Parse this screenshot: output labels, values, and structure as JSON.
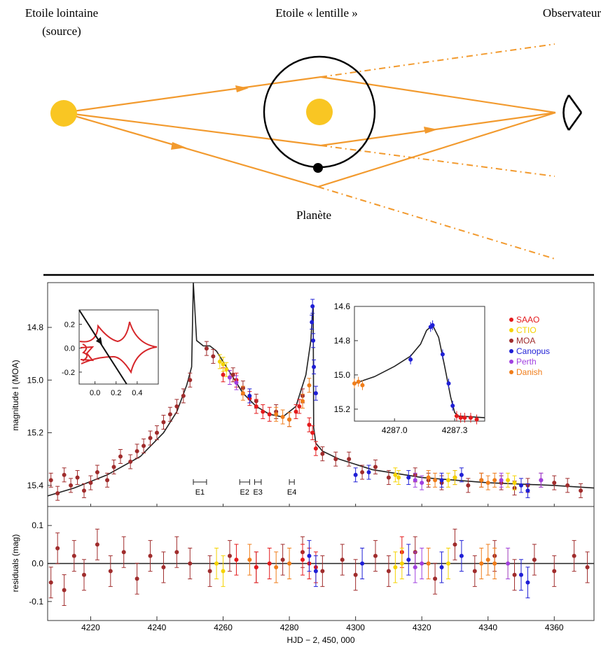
{
  "diagram": {
    "source_label_line1": "Etoile lointaine",
    "source_label_line2": "(source)",
    "lens_label": "Etoile « lentille »",
    "observer_label": "Observateur",
    "planet_label": "Planète",
    "colors": {
      "ray": "#f29a2e",
      "star": "#f9c623",
      "orbit": "#000000"
    }
  },
  "chart_data": [
    {
      "type": "scatter",
      "panel": "main",
      "ylabel": "magnitude I (MOA)",
      "ylim": [
        15.48,
        14.63
      ],
      "xlim": [
        4207,
        4372
      ],
      "y_inverted": true,
      "yticks": [
        "14.8",
        "15.0",
        "15.2",
        "15.4"
      ],
      "yticks_values": [
        14.8,
        15.0,
        15.2,
        15.4
      ],
      "grid": false,
      "legend": {
        "placement": "top-right",
        "entries": [
          {
            "name": "SAAO",
            "color": "#e41a1c"
          },
          {
            "name": "CTIO",
            "color": "#f5d300"
          },
          {
            "name": "MOA",
            "color": "#a02c2c"
          },
          {
            "name": "Canopus",
            "color": "#1f1fd6"
          },
          {
            "name": "Perth",
            "color": "#a040e0"
          },
          {
            "name": "Danish",
            "color": "#f07d1a"
          }
        ]
      },
      "model_curve": {
        "x": [
          4207,
          4215,
          4225,
          4235,
          4242,
          4246,
          4249,
          4250.5,
          4251,
          4252,
          4254,
          4256,
          4258,
          4262,
          4266,
          4270,
          4274,
          4278,
          4282,
          4285,
          4286.5,
          4287,
          4287.2,
          4287.35,
          4288,
          4290,
          4295,
          4305,
          4320,
          4340,
          4360,
          4372
        ],
        "y": [
          15.44,
          15.41,
          15.36,
          15.29,
          15.2,
          15.12,
          15.02,
          14.95,
          14.63,
          14.85,
          14.87,
          14.87,
          14.89,
          14.97,
          15.05,
          15.1,
          15.13,
          15.14,
          15.1,
          14.98,
          14.85,
          14.74,
          14.72,
          15.18,
          15.24,
          15.27,
          15.3,
          15.34,
          15.37,
          15.39,
          15.4,
          15.41
        ]
      },
      "series": [
        {
          "name": "MOA",
          "color": "#a02c2c",
          "x": [
            4208,
            4210,
            4212,
            4214,
            4216,
            4218,
            4220,
            4222,
            4225,
            4227,
            4229,
            4232,
            4234,
            4236,
            4238,
            4240,
            4242,
            4244,
            4246,
            4248,
            4250,
            4255,
            4257,
            4263,
            4266,
            4270,
            4276,
            4280,
            4284,
            4290,
            4294,
            4298,
            4302,
            4306,
            4310,
            4318,
            4322,
            4326,
            4330,
            4334,
            4338,
            4344,
            4348,
            4352,
            4356,
            4360,
            4364,
            4368
          ],
          "y": [
            15.38,
            15.43,
            15.36,
            15.4,
            15.37,
            15.42,
            15.39,
            15.35,
            15.38,
            15.33,
            15.29,
            15.31,
            15.27,
            15.25,
            15.22,
            15.2,
            15.16,
            15.13,
            15.1,
            15.06,
            15.0,
            14.88,
            14.91,
            14.98,
            15.03,
            15.08,
            15.12,
            15.15,
            15.06,
            15.28,
            15.3,
            15.3,
            15.35,
            15.33,
            15.37,
            15.36,
            15.38,
            15.39,
            15.37,
            15.4,
            15.38,
            15.39,
            15.41,
            15.4,
            15.38,
            15.39,
            15.4,
            15.42
          ]
        },
        {
          "name": "SAAO",
          "color": "#e41a1c",
          "x": [
            4260,
            4262,
            4264,
            4268,
            4270,
            4272,
            4274,
            4282,
            4283,
            4286,
            4287,
            4288
          ],
          "y": [
            14.98,
            14.99,
            15.0,
            15.07,
            15.1,
            15.12,
            15.13,
            15.12,
            15.1,
            15.17,
            15.2,
            15.26
          ]
        },
        {
          "name": "CTIO",
          "color": "#f5d300",
          "x": [
            4259,
            4260,
            4261,
            4312,
            4313,
            4328,
            4330,
            4346,
            4348
          ],
          "y": [
            14.93,
            14.94,
            14.96,
            15.36,
            15.37,
            15.38,
            15.37,
            15.38,
            15.39
          ]
        },
        {
          "name": "Canopus",
          "color": "#1f1fd6",
          "x": [
            4268,
            4286.8,
            4287,
            4287.2,
            4287.4,
            4288,
            4300,
            4304,
            4316,
            4326,
            4332,
            4350,
            4352
          ],
          "y": [
            15.06,
            14.78,
            14.72,
            14.85,
            14.95,
            15.05,
            15.36,
            15.35,
            15.37,
            15.38,
            15.36,
            15.4,
            15.42
          ]
        },
        {
          "name": "Perth",
          "color": "#a040e0",
          "x": [
            4262,
            4264,
            4318,
            4320,
            4344,
            4356
          ],
          "y": [
            14.99,
            15.01,
            15.38,
            15.39,
            15.38,
            15.38
          ]
        },
        {
          "name": "Danish",
          "color": "#f07d1a",
          "x": [
            4266,
            4276,
            4278,
            4280,
            4284,
            4286,
            4322,
            4324,
            4338,
            4340,
            4342
          ],
          "y": [
            15.05,
            15.13,
            15.14,
            15.15,
            15.08,
            15.02,
            15.37,
            15.38,
            15.38,
            15.39,
            15.38
          ]
        }
      ],
      "annotations": [
        {
          "label": "E1",
          "x_start": 4251,
          "x_end": 4255
        },
        {
          "label": "E2",
          "x_start": 4265,
          "x_end": 4268
        },
        {
          "label": "E3",
          "x_start": 4269.5,
          "x_end": 4271.5
        },
        {
          "label": "E4",
          "x_start": 4280,
          "x_end": 4281.5
        }
      ]
    },
    {
      "type": "line",
      "panel": "inset-caustic",
      "xlim": [
        -0.15,
        0.6
      ],
      "ylim": [
        -0.3,
        0.32
      ],
      "xticks": [
        "0.0",
        "0.2",
        "0.4"
      ],
      "xticks_values": [
        0.0,
        0.2,
        0.4
      ],
      "yticks": [
        "0.2",
        "0.0",
        "-0.2"
      ],
      "yticks_values": [
        0.2,
        0.0,
        -0.2
      ],
      "trajectory": {
        "x": [
          -0.15,
          0.3
        ],
        "y": [
          0.32,
          -0.3
        ]
      }
    },
    {
      "type": "scatter",
      "panel": "inset-peak",
      "xlim": [
        4286.8,
        4287.45
      ],
      "ylim": [
        15.27,
        14.6
      ],
      "xticks": [
        "4287.0",
        "4287.3"
      ],
      "xticks_values": [
        4287.0,
        4287.3
      ],
      "yticks": [
        "14.6",
        "14.8",
        "15.0",
        "15.2"
      ],
      "yticks_values": [
        14.6,
        14.8,
        15.0,
        15.2
      ],
      "model_curve": {
        "x": [
          4286.8,
          4286.9,
          4287.0,
          4287.08,
          4287.13,
          4287.16,
          4287.19,
          4287.22,
          4287.25,
          4287.28,
          4287.3,
          4287.32,
          4287.45
        ],
        "y": [
          15.05,
          15.01,
          14.95,
          14.89,
          14.82,
          14.74,
          14.71,
          14.78,
          14.95,
          15.13,
          15.22,
          15.24,
          15.25
        ]
      },
      "series": [
        {
          "name": "Danish",
          "color": "#f07d1a",
          "x": [
            4286.8,
            4286.82,
            4286.84
          ],
          "y": [
            15.05,
            15.04,
            15.06
          ]
        },
        {
          "name": "Canopus",
          "color": "#1f1fd6",
          "x": [
            4287.08,
            4287.18,
            4287.19,
            4287.24,
            4287.27,
            4287.29
          ],
          "y": [
            14.91,
            14.72,
            14.71,
            14.88,
            15.05,
            15.18
          ]
        },
        {
          "name": "SAAO",
          "color": "#e41a1c",
          "x": [
            4287.31,
            4287.33,
            4287.35,
            4287.38,
            4287.41
          ],
          "y": [
            15.24,
            15.25,
            15.25,
            15.25,
            15.26
          ]
        }
      ]
    },
    {
      "type": "scatter",
      "panel": "residuals",
      "ylabel": "residuals (mag)",
      "xlabel": "HJD − 2, 450, 000",
      "xlim": [
        4207,
        4372
      ],
      "ylim": [
        -0.15,
        0.15
      ],
      "xticks": [
        "4220",
        "4240",
        "4260",
        "4280",
        "4300",
        "4320",
        "4340",
        "4360"
      ],
      "xticks_values": [
        4220,
        4240,
        4260,
        4280,
        4300,
        4320,
        4340,
        4360
      ],
      "yticks": [
        "0.1",
        "0.0",
        "-0.1"
      ],
      "yticks_values": [
        0.1,
        0.0,
        -0.1
      ],
      "series": [
        {
          "name": "MOA",
          "color": "#a02c2c",
          "x": [
            4208,
            4210,
            4212,
            4215,
            4218,
            4222,
            4226,
            4230,
            4234,
            4238,
            4242,
            4246,
            4250,
            4256,
            4262,
            4270,
            4278,
            4284,
            4290,
            4296,
            4300,
            4306,
            4310,
            4318,
            4324,
            4330,
            4336,
            4342,
            4348,
            4354,
            4360,
            4366,
            4370
          ],
          "y": [
            -0.05,
            0.04,
            -0.07,
            0.02,
            -0.03,
            0.05,
            -0.02,
            0.03,
            -0.04,
            0.02,
            -0.01,
            0.03,
            0.0,
            -0.02,
            0.02,
            -0.01,
            0.01,
            0.03,
            -0.02,
            0.01,
            -0.03,
            0.02,
            -0.02,
            0.03,
            -0.04,
            0.05,
            -0.02,
            0.02,
            -0.03,
            0.01,
            -0.02,
            0.02,
            -0.01
          ]
        },
        {
          "name": "SAAO",
          "color": "#e41a1c",
          "x": [
            4264,
            4270,
            4274,
            4284,
            4286,
            4288,
            4314
          ],
          "y": [
            0.01,
            -0.01,
            0.0,
            0.01,
            0.0,
            -0.01,
            0.03
          ]
        },
        {
          "name": "CTIO",
          "color": "#f5d300",
          "x": [
            4258,
            4260,
            4312,
            4314,
            4328,
            4346
          ],
          "y": [
            0.0,
            -0.02,
            -0.01,
            0.0,
            0.0,
            0.0
          ]
        },
        {
          "name": "Canopus",
          "color": "#1f1fd6",
          "x": [
            4286,
            4288,
            4302,
            4316,
            4326,
            4332,
            4350,
            4352
          ],
          "y": [
            0.02,
            -0.02,
            0.0,
            0.01,
            -0.01,
            0.02,
            -0.03,
            -0.05
          ]
        },
        {
          "name": "Perth",
          "color": "#a040e0",
          "x": [
            4318,
            4320,
            4346
          ],
          "y": [
            -0.01,
            0.0,
            0.0
          ]
        },
        {
          "name": "Danish",
          "color": "#f07d1a",
          "x": [
            4268,
            4276,
            4280,
            4322,
            4338,
            4340,
            4342
          ],
          "y": [
            0.01,
            -0.01,
            0.0,
            0.0,
            0.0,
            0.01,
            0.0
          ]
        }
      ]
    }
  ]
}
